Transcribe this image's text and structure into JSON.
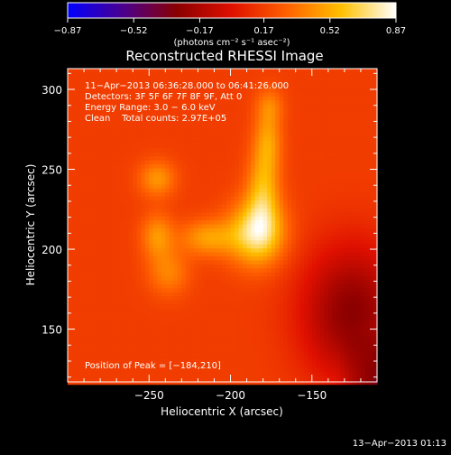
{
  "chart_data": {
    "type": "heatmap",
    "title": "Reconstructed RHESSI Image",
    "xlabel": "Heliocentric X (arcsec)",
    "ylabel": "Heliocentric Y (arcsec)",
    "xlim": [
      -300,
      -110
    ],
    "ylim": [
      117,
      313
    ],
    "x_ticks": [
      -250,
      -200,
      -150
    ],
    "x_tick_labels": [
      "−250",
      "−200",
      "−150"
    ],
    "y_ticks": [
      150,
      200,
      250,
      300
    ],
    "y_tick_labels": [
      "150",
      "200",
      "250",
      "300"
    ],
    "colorbar": {
      "range": [
        -0.87,
        0.87
      ],
      "ticks": [
        -0.87,
        -0.52,
        -0.17,
        0.17,
        0.52,
        0.87
      ],
      "tick_labels": [
        "−0.87",
        "−0.52",
        "−0.17",
        "0.17",
        "0.52",
        "0.87"
      ],
      "unit_label": "(photons cm⁻² s⁻¹ asec⁻²)",
      "colors": [
        "#0000ff",
        "#4a0090",
        "#8a0000",
        "#e01000",
        "#ff6000",
        "#ffc000",
        "#ffffff"
      ]
    },
    "annotations": {
      "time_range": "11−Apr−2013 06:36:28.000 to 06:41:26.000",
      "detectors": "Detectors: 3F 5F 6F 7F 8F 9F, Att 0",
      "energy_range": "Energy Range: 3.0 − 6.0 keV",
      "algorithm_counts": "Clean    Total counts: 2.97E+05",
      "peak_position": "Position of Peak = [−184,210]"
    },
    "peak": {
      "x": -184,
      "y": 210,
      "value": 0.87
    },
    "sources": [
      {
        "x": -184,
        "y": 210,
        "sx": 12,
        "sy": 14,
        "amp": 0.7
      },
      {
        "x": -180,
        "y": 236,
        "sx": 7,
        "sy": 18,
        "amp": 0.45
      },
      {
        "x": -177,
        "y": 268,
        "sx": 6,
        "sy": 14,
        "amp": 0.35
      },
      {
        "x": -176,
        "y": 290,
        "sx": 6,
        "sy": 8,
        "amp": 0.22
      },
      {
        "x": -214,
        "y": 207,
        "sx": 12,
        "sy": 8,
        "amp": 0.38
      },
      {
        "x": -245,
        "y": 208,
        "sx": 7,
        "sy": 10,
        "amp": 0.35
      },
      {
        "x": -238,
        "y": 185,
        "sx": 9,
        "sy": 10,
        "amp": 0.28
      },
      {
        "x": -245,
        "y": 244,
        "sx": 8,
        "sy": 8,
        "amp": 0.35
      }
    ],
    "background": 0.2,
    "low_region": {
      "x": -125,
      "y": 160,
      "sx": 22,
      "sy": 30,
      "amp": -0.55
    },
    "footer_timestamp": "13−Apr−2013 01:13"
  }
}
